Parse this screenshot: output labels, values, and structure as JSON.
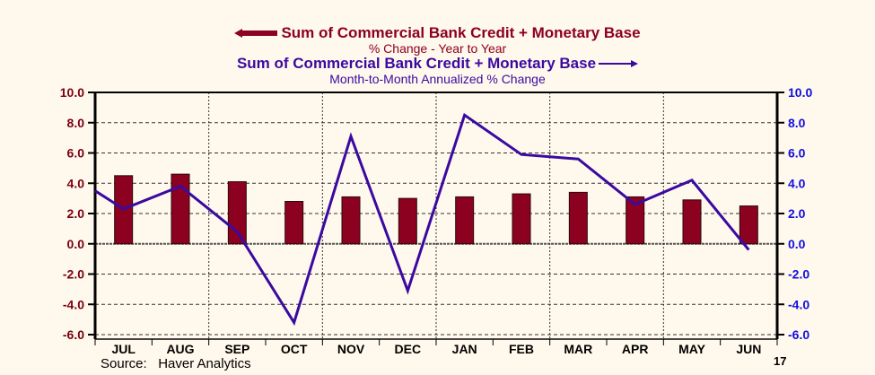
{
  "legend": {
    "bar_series": {
      "title": "Sum of Commercial Bank Credit + Monetary Base",
      "subtitle": "% Change - Year to Year",
      "axis_side": "left",
      "color": "#8c0020"
    },
    "line_series": {
      "title": "Sum of Commercial Bank Credit + Monetary Base",
      "subtitle": "Month-to-Month Annualized % Change",
      "axis_side": "right",
      "color": "#3a0aa0"
    }
  },
  "footer": {
    "source": "Source:   Haver Analytics",
    "year_label": "17"
  },
  "chart_data": {
    "type": "bar+line",
    "title": "Sum of Commercial Bank Credit + Monetary Base",
    "categories": [
      "JUL",
      "AUG",
      "SEP",
      "OCT",
      "NOV",
      "DEC",
      "JAN",
      "FEB",
      "MAR",
      "APR",
      "MAY",
      "JUN"
    ],
    "year_annotation": "17",
    "series": [
      {
        "name": "Sum of Commercial Bank Credit + Monetary Base: % Change - Year to Year",
        "type": "bar",
        "axis": "left",
        "color": "#8c0020",
        "values": [
          4.5,
          4.6,
          4.1,
          2.8,
          3.1,
          3.0,
          3.1,
          3.3,
          3.4,
          3.1,
          2.9,
          2.5
        ]
      },
      {
        "name": "Sum of Commercial Bank Credit + Monetary Base: Month-to-Month Annualized % Change",
        "type": "line",
        "axis": "right",
        "color": "#3a0aa0",
        "start_value": 3.5,
        "values": [
          2.3,
          3.8,
          0.8,
          -5.2,
          7.1,
          -3.1,
          8.5,
          5.9,
          5.6,
          2.6,
          4.2,
          -0.4
        ]
      }
    ],
    "left_axis": {
      "ticks": [
        "10.0",
        "8.0",
        "6.0",
        "4.0",
        "2.0",
        "0.0",
        "-2.0",
        "-4.0",
        "-6.0"
      ],
      "range": [
        -6,
        10
      ],
      "color": "#7a0010"
    },
    "right_axis": {
      "ticks": [
        "10.0",
        "8.0",
        "6.0",
        "4.0",
        "2.0",
        "0.0",
        "-2.0",
        "-4.0",
        "-6.0"
      ],
      "range": [
        -6,
        10
      ],
      "color": "#1010e0"
    },
    "xlabel": "",
    "ylabel": "",
    "grid": true,
    "source": "Source:   Haver Analytics"
  }
}
